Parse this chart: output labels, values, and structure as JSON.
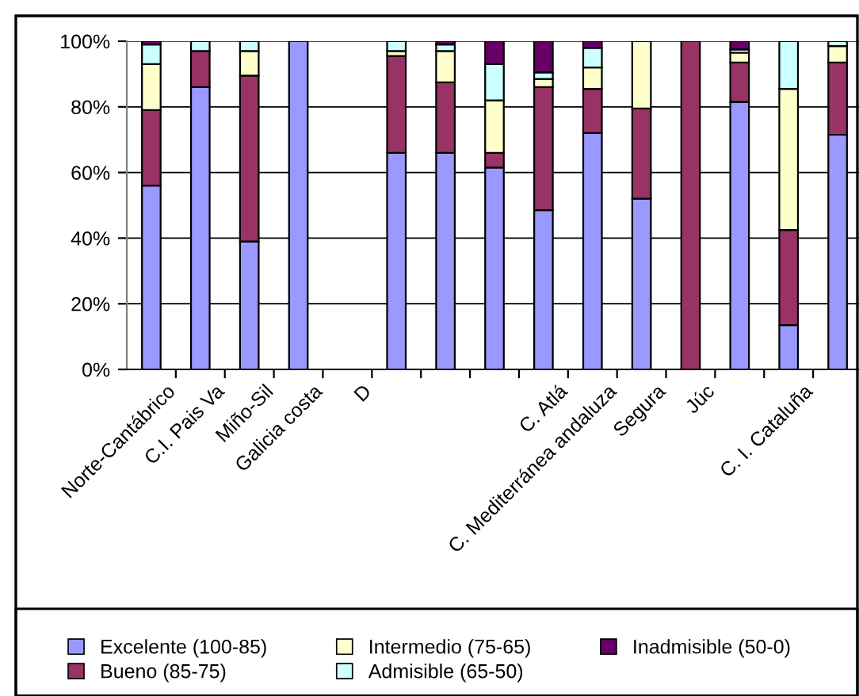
{
  "chart_data": {
    "type": "bar",
    "stacked": true,
    "categories": [
      "Norte-Cantábrico",
      "C.I. Pais Va",
      "Miño-Sil",
      "Galicia costa",
      "D",
      null,
      null,
      null,
      "C. Atlá",
      "C. Mediterránea andaluza",
      "Segura",
      "Júc",
      null,
      "C. I. Cataluña",
      null
    ],
    "series": [
      {
        "name": "Excelente (100-85)",
        "color": "#9999ff",
        "values": [
          56,
          86,
          39,
          100,
          null,
          66,
          66,
          61.5,
          48.5,
          72,
          52,
          0,
          81.5,
          13.5,
          71.5
        ]
      },
      {
        "name": "Bueno (85-75)",
        "color": "#993366",
        "values": [
          23,
          11,
          50.5,
          0,
          null,
          29.5,
          21.5,
          4.5,
          37.5,
          13.5,
          27.5,
          100,
          12,
          29,
          22
        ]
      },
      {
        "name": "Intermedio (75-65)",
        "color": "#ffffcc",
        "values": [
          14,
          0,
          7.5,
          0,
          null,
          1.5,
          9.5,
          16,
          2.5,
          6.5,
          20.5,
          0,
          3,
          43,
          5
        ]
      },
      {
        "name": "Admisible (65-50)",
        "color": "#ccffff",
        "values": [
          6,
          3,
          3,
          0,
          null,
          3,
          2,
          11,
          2,
          6,
          0,
          0,
          1,
          14.5,
          1.5
        ]
      },
      {
        "name": "Inadmisible (50-0)",
        "color": "#660066",
        "values": [
          1,
          0,
          0,
          0,
          null,
          0,
          1,
          7,
          9.5,
          2,
          0,
          0,
          2.5,
          0,
          0
        ]
      }
    ],
    "ylim": [
      0,
      100
    ],
    "yticks": [
      {
        "value": 0,
        "label": "0%"
      },
      {
        "value": 20,
        "label": "20%"
      },
      {
        "value": 40,
        "label": "40%"
      },
      {
        "value": 60,
        "label": "60%"
      },
      {
        "value": 80,
        "label": "80%"
      },
      {
        "value": 100,
        "label": "100%"
      }
    ],
    "grid": "y",
    "legend": "bottom"
  }
}
